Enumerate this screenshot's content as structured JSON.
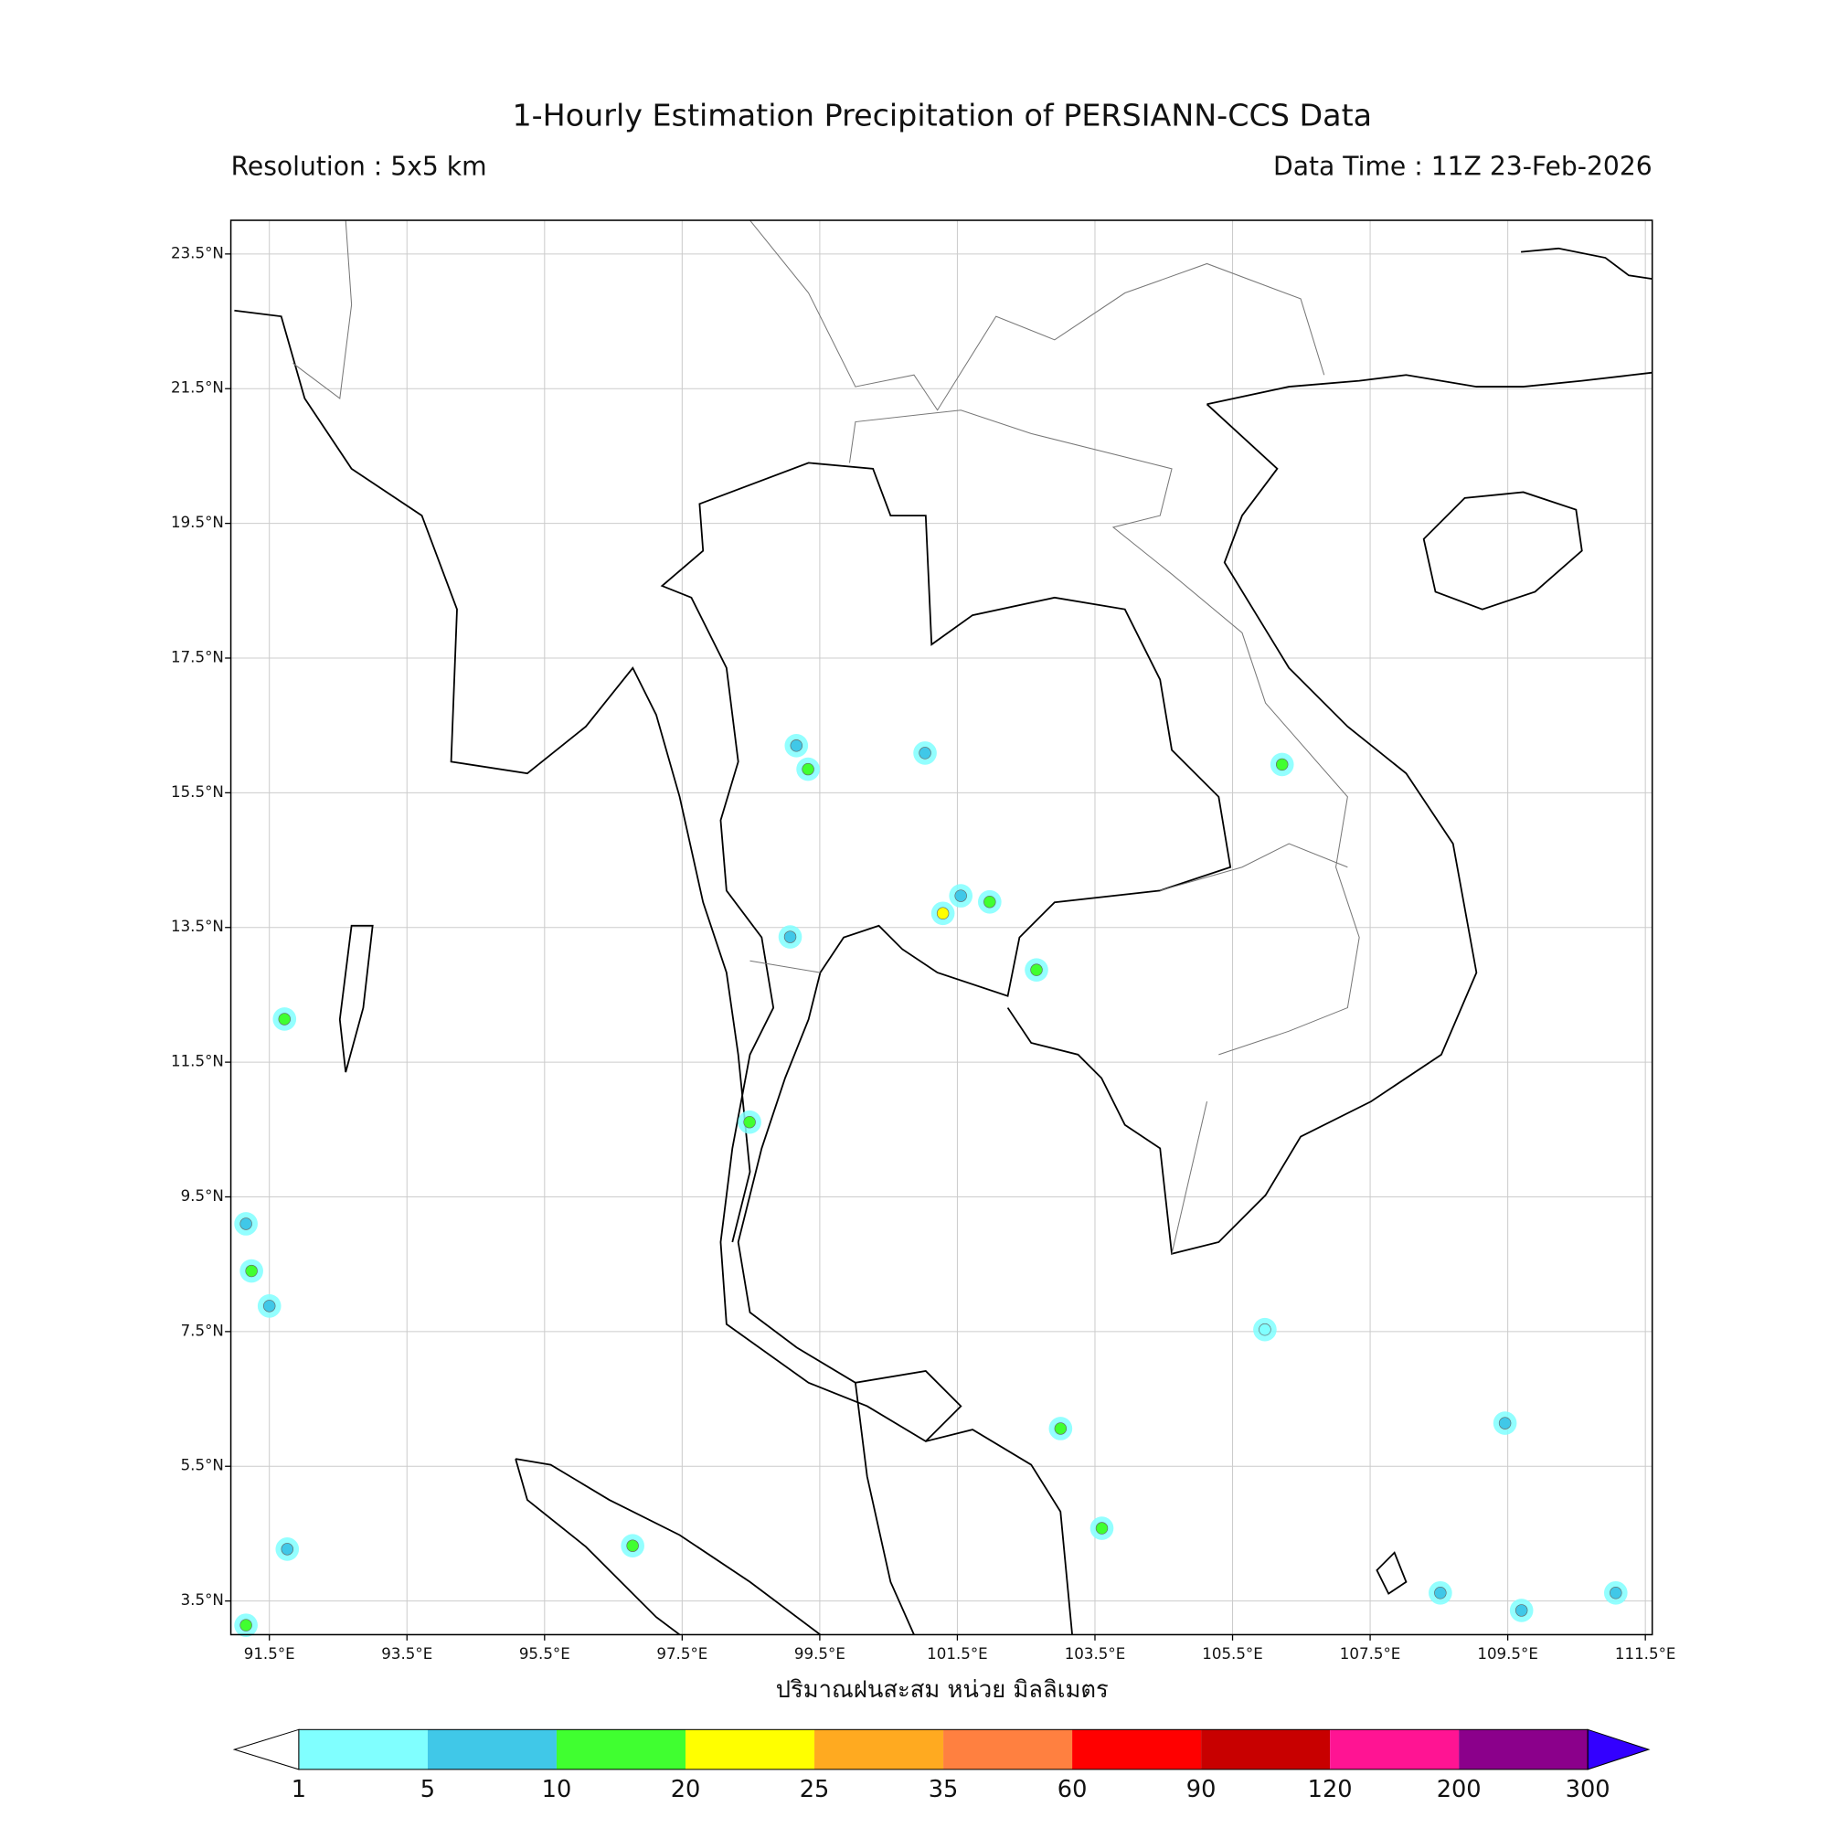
{
  "map": {
    "title": "1-Hourly Estimation Precipitation of PERSIANN-CCS Data",
    "subtitle_left": "Resolution : 5x5 km",
    "subtitle_right": "Data Time : 11Z 23-Feb-2026",
    "xlabel": "ปริมาณฝนสะสม หน่วย มิลลิเมตร",
    "xlim": [
      90.94,
      111.6
    ],
    "ylim": [
      3.0,
      24.0
    ],
    "grid": true,
    "xticks": [
      {
        "value": 91.5,
        "label": "91.5°E"
      },
      {
        "value": 93.5,
        "label": "93.5°E"
      },
      {
        "value": 95.5,
        "label": "95.5°E"
      },
      {
        "value": 97.5,
        "label": "97.5°E"
      },
      {
        "value": 99.5,
        "label": "99.5°E"
      },
      {
        "value": 101.5,
        "label": "101.5°E"
      },
      {
        "value": 103.5,
        "label": "103.5°E"
      },
      {
        "value": 105.5,
        "label": "105.5°E"
      },
      {
        "value": 107.5,
        "label": "107.5°E"
      },
      {
        "value": 109.5,
        "label": "109.5°E"
      },
      {
        "value": 111.5,
        "label": "111.5°E"
      }
    ],
    "yticks": [
      {
        "value": 23.5,
        "label": "23.5°N"
      },
      {
        "value": 21.5,
        "label": "21.5°N"
      },
      {
        "value": 19.5,
        "label": "19.5°N"
      },
      {
        "value": 17.5,
        "label": "17.5°N"
      },
      {
        "value": 15.5,
        "label": "15.5°N"
      },
      {
        "value": 13.5,
        "label": "13.5°N"
      },
      {
        "value": 11.5,
        "label": "11.5°N"
      },
      {
        "value": 9.5,
        "label": "9.5°N"
      },
      {
        "value": 7.5,
        "label": "7.5°N"
      },
      {
        "value": 5.5,
        "label": "5.5°N"
      },
      {
        "value": 3.5,
        "label": "3.5°N"
      }
    ],
    "colorbar": {
      "levels": [
        1,
        5,
        10,
        20,
        25,
        35,
        60,
        90,
        120,
        200,
        300
      ],
      "colors": [
        "#80ffff",
        "#40c8e8",
        "#40ff30",
        "#ffff00",
        "#ffaa20",
        "#ff8040",
        "#ff0000",
        "#c80000",
        "#ff1493",
        "#8b008b"
      ],
      "under_color": "#ffffff",
      "over_color": "#3300ff"
    },
    "rain_cells": [
      {
        "lon": 91.72,
        "lat": 12.14,
        "value": 10
      },
      {
        "lon": 91.24,
        "lat": 8.4,
        "value": 10
      },
      {
        "lon": 91.5,
        "lat": 7.88,
        "value": 5
      },
      {
        "lon": 91.16,
        "lat": 9.1,
        "value": 5
      },
      {
        "lon": 98.48,
        "lat": 10.61,
        "value": 10
      },
      {
        "lon": 99.07,
        "lat": 13.36,
        "value": 5
      },
      {
        "lon": 101.29,
        "lat": 13.71,
        "value": 20
      },
      {
        "lon": 101.55,
        "lat": 13.97,
        "value": 5
      },
      {
        "lon": 101.97,
        "lat": 13.88,
        "value": 10
      },
      {
        "lon": 99.33,
        "lat": 15.85,
        "value": 10
      },
      {
        "lon": 99.16,
        "lat": 16.2,
        "value": 5
      },
      {
        "lon": 101.03,
        "lat": 16.09,
        "value": 5
      },
      {
        "lon": 106.22,
        "lat": 15.92,
        "value": 10
      },
      {
        "lon": 102.65,
        "lat": 12.87,
        "value": 10
      },
      {
        "lon": 103.6,
        "lat": 4.58,
        "value": 10
      },
      {
        "lon": 103.0,
        "lat": 6.06,
        "value": 10
      },
      {
        "lon": 96.78,
        "lat": 4.32,
        "value": 10
      },
      {
        "lon": 108.52,
        "lat": 3.62,
        "value": 5
      },
      {
        "lon": 109.7,
        "lat": 3.36,
        "value": 5
      },
      {
        "lon": 111.07,
        "lat": 3.62,
        "value": 5
      },
      {
        "lon": 109.46,
        "lat": 6.14,
        "value": 5
      },
      {
        "lon": 105.97,
        "lat": 7.53,
        "value": 1
      },
      {
        "lon": 91.16,
        "lat": 3.14,
        "value": 10
      },
      {
        "lon": 91.76,
        "lat": 4.27,
        "value": 5
      }
    ]
  }
}
